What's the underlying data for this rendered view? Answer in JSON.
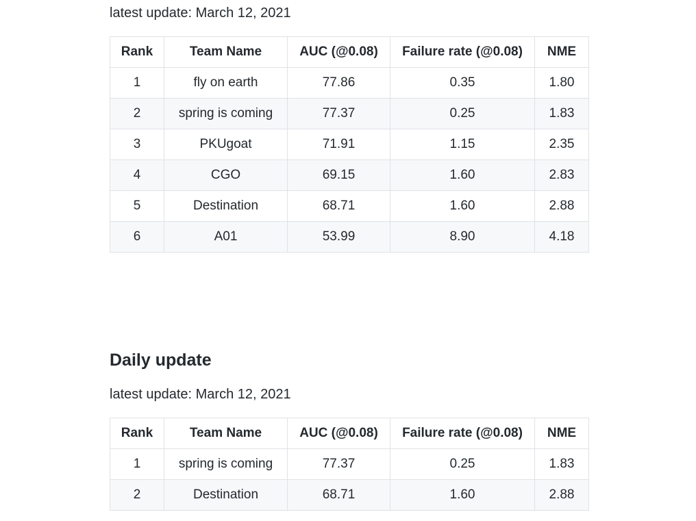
{
  "overall": {
    "update_text": "latest update: March 12, 2021",
    "columns": [
      "Rank",
      "Team Name",
      "AUC (@0.08)",
      "Failure rate (@0.08)",
      "NME"
    ],
    "rows": [
      [
        "1",
        "fly on earth",
        "77.86",
        "0.35",
        "1.80"
      ],
      [
        "2",
        "spring is coming",
        "77.37",
        "0.25",
        "1.83"
      ],
      [
        "3",
        "PKUgoat",
        "71.91",
        "1.15",
        "2.35"
      ],
      [
        "4",
        "CGO",
        "69.15",
        "1.60",
        "2.83"
      ],
      [
        "5",
        "Destination",
        "68.71",
        "1.60",
        "2.88"
      ],
      [
        "6",
        "A01",
        "53.99",
        "8.90",
        "4.18"
      ]
    ]
  },
  "daily": {
    "heading": "Daily update",
    "update_text": "latest update: March 12, 2021",
    "columns": [
      "Rank",
      "Team Name",
      "AUC (@0.08)",
      "Failure rate (@0.08)",
      "NME"
    ],
    "rows": [
      [
        "1",
        "spring is coming",
        "77.37",
        "0.25",
        "1.83"
      ],
      [
        "2",
        "Destination",
        "68.71",
        "1.60",
        "2.88"
      ]
    ]
  },
  "colors": {
    "text": "#24292e",
    "border": "#dfe2e5",
    "stripe": "#f6f8fa"
  }
}
